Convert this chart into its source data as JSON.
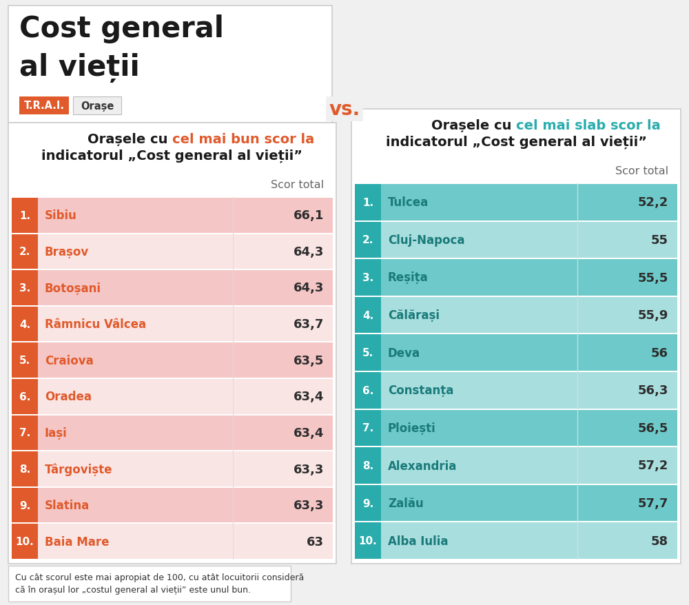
{
  "title_main_line1": "Cost general",
  "title_main_line2": "al vieții",
  "tag1": "T.R.A.I.",
  "tag2": "Orașe",
  "left_title_p1": "Orașele cu ",
  "left_title_p2": "cel mai bun scor",
  "left_title_p3": " la",
  "left_title_line2": "indicatorul „Cost general al vieții”",
  "right_title_p1": "Orașele cu ",
  "right_title_p2": "cel mai slab scor",
  "right_title_p3": " la",
  "right_title_line2": "indicatorul „Cost general al vieții”",
  "score_label": "Scor total",
  "left_cities": [
    "Sibiu",
    "Brașov",
    "Botoșani",
    "Râmnicu Vâlcea",
    "Craiova",
    "Oradea",
    "Iași",
    "Târgoviște",
    "Slatina",
    "Baia Mare"
  ],
  "left_scores": [
    "66,1",
    "64,3",
    "64,3",
    "63,7",
    "63,5",
    "63,4",
    "63,4",
    "63,3",
    "63,3",
    "63"
  ],
  "right_cities": [
    "Tulcea",
    "Cluj-Napoca",
    "Reșița",
    "Călărași",
    "Deva",
    "Constanța",
    "Ploiești",
    "Alexandria",
    "Zalău",
    "Alba Iulia"
  ],
  "right_scores": [
    "52,2",
    "55",
    "55,5",
    "55,9",
    "56",
    "56,3",
    "56,5",
    "57,2",
    "57,7",
    "58"
  ],
  "left_row_bg_odd": "#f5c6c6",
  "left_row_bg_even": "#fae5e5",
  "right_row_bg_odd": "#6ecaca",
  "right_row_bg_even": "#a8dede",
  "left_badge_color": "#e05a2b",
  "right_badge_color": "#2aacac",
  "left_city_color": "#e05a2b",
  "right_city_color": "#1a7a7a",
  "score_color": "#2d2d2d",
  "bg_color": "#ffffff",
  "outer_bg": "#f0f0f0",
  "panel_border": "#cccccc",
  "vs_color": "#e05a2b",
  "left_highlight_color": "#e05a2b",
  "right_highlight_color": "#2aacac",
  "footer_text": "Cu cât scorul este mai apropiat de 100, cu atât locuitorii consideră\ncă în orașul lor „costul general al vieții” este unul bun.",
  "header_title_color": "#1a1a1a",
  "normal_title_color": "#1a1a1a"
}
